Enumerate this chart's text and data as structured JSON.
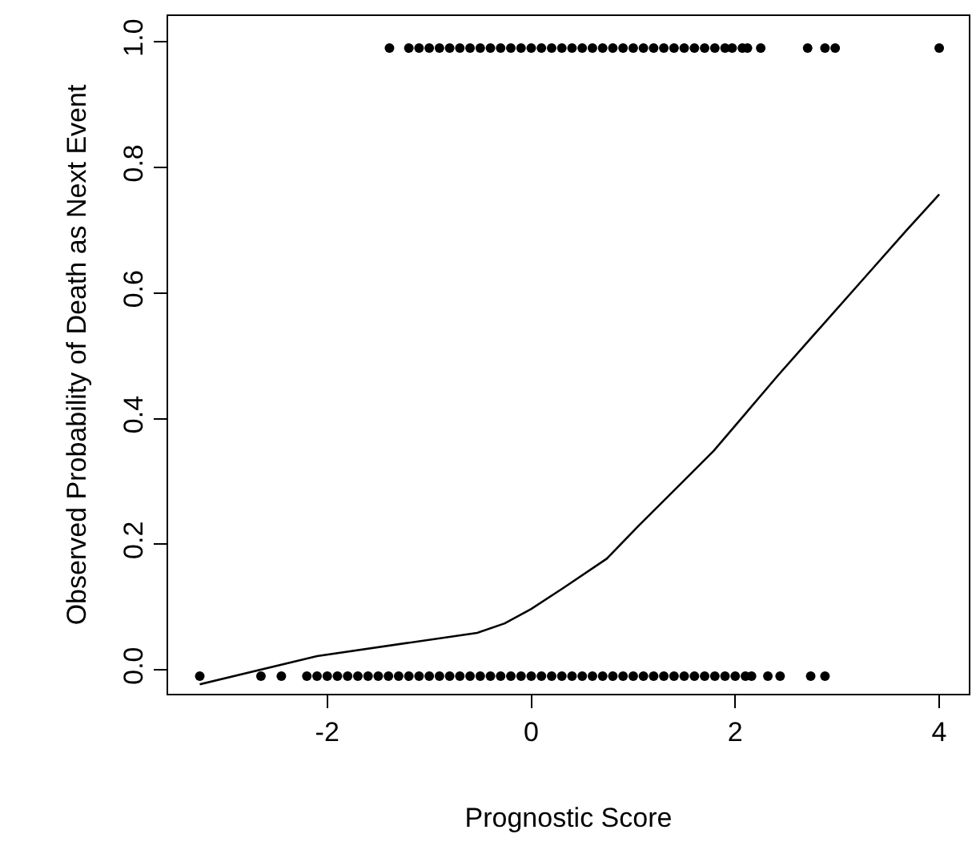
{
  "chart_data": {
    "type": "scatter",
    "xlabel": "Prognostic Score",
    "ylabel": "Observed Probability of Death as Next Event",
    "xlim": [
      -3.56,
      4.29
    ],
    "ylim": [
      -0.038,
      1.041
    ],
    "xticks": [
      -2,
      0,
      2,
      4
    ],
    "yticks": [
      {
        "value": 0,
        "label": "0.0"
      },
      {
        "value": 0.2,
        "label": "0.2"
      },
      {
        "value": 0.4,
        "label": "0.4"
      },
      {
        "value": 0.6,
        "label": "0.6"
      },
      {
        "value": 0.8,
        "label": "0.8"
      },
      {
        "value": 1,
        "label": "1.0"
      }
    ],
    "marker": "circle",
    "series": [
      {
        "color": "#000000",
        "x": [
          -1.39,
          -1.2,
          -1.1,
          -1.0,
          -0.9,
          -0.8,
          -0.7,
          -0.6,
          -0.5,
          -0.4,
          -0.3,
          -0.2,
          -0.1,
          0.0,
          0.1,
          0.2,
          0.3,
          0.4,
          0.5,
          0.6,
          0.7,
          0.8,
          0.9,
          1.0,
          1.1,
          1.2,
          1.3,
          1.4,
          1.5,
          1.6,
          1.7,
          1.8,
          1.9,
          1.97,
          2.07,
          2.12,
          2.25,
          2.71,
          2.88,
          2.98,
          4.0
        ],
        "values": [
          0.99,
          0.99,
          0.99,
          0.99,
          0.99,
          0.99,
          0.99,
          0.99,
          0.99,
          0.99,
          0.99,
          0.99,
          0.99,
          0.99,
          0.99,
          0.99,
          0.99,
          0.99,
          0.99,
          0.99,
          0.99,
          0.99,
          0.99,
          0.99,
          0.99,
          0.99,
          0.99,
          0.99,
          0.99,
          0.99,
          0.99,
          0.99,
          0.99,
          0.99,
          0.99,
          0.99,
          0.99,
          0.99,
          0.99,
          0.99,
          0.99
        ]
      },
      {
        "color": "#000000",
        "x": [
          -3.25,
          -2.65,
          -2.45,
          -2.2,
          -2.1,
          -2.0,
          -1.9,
          -1.8,
          -1.7,
          -1.6,
          -1.5,
          -1.4,
          -1.3,
          -1.2,
          -1.1,
          -1.0,
          -0.9,
          -0.8,
          -0.7,
          -0.6,
          -0.5,
          -0.4,
          -0.3,
          -0.2,
          -0.1,
          0.0,
          0.1,
          0.2,
          0.3,
          0.4,
          0.5,
          0.6,
          0.7,
          0.8,
          0.9,
          1.0,
          1.1,
          1.2,
          1.3,
          1.4,
          1.5,
          1.6,
          1.7,
          1.8,
          1.9,
          2.0,
          2.1,
          2.16,
          2.32,
          2.44,
          2.74,
          2.88
        ],
        "values": [
          -0.01,
          -0.01,
          -0.01,
          -0.01,
          -0.01,
          -0.01,
          -0.01,
          -0.01,
          -0.01,
          -0.01,
          -0.01,
          -0.01,
          -0.01,
          -0.01,
          -0.01,
          -0.01,
          -0.01,
          -0.01,
          -0.01,
          -0.01,
          -0.01,
          -0.01,
          -0.01,
          -0.01,
          -0.01,
          -0.01,
          -0.01,
          -0.01,
          -0.01,
          -0.01,
          -0.01,
          -0.01,
          -0.01,
          -0.01,
          -0.01,
          -0.01,
          -0.01,
          -0.01,
          -0.01,
          -0.01,
          -0.01,
          -0.01,
          -0.01,
          -0.01,
          -0.01,
          -0.01,
          -0.01,
          -0.01,
          -0.01,
          -0.01,
          -0.01,
          -0.01
        ]
      },
      {
        "type": "line",
        "color": "#000000",
        "marker": "none",
        "line_style": "solid",
        "x": [
          -3.25,
          -2.1,
          -0.53,
          -0.26,
          0.0,
          0.32,
          0.74,
          1.05,
          1.47,
          1.79,
          2.1,
          2.42,
          2.84,
          3.26,
          3.68,
          4.0
        ],
        "values": [
          -0.023,
          0.022,
          0.059,
          0.074,
          0.097,
          0.131,
          0.177,
          0.229,
          0.297,
          0.349,
          0.408,
          0.469,
          0.546,
          0.623,
          0.7,
          0.757
        ]
      }
    ]
  }
}
